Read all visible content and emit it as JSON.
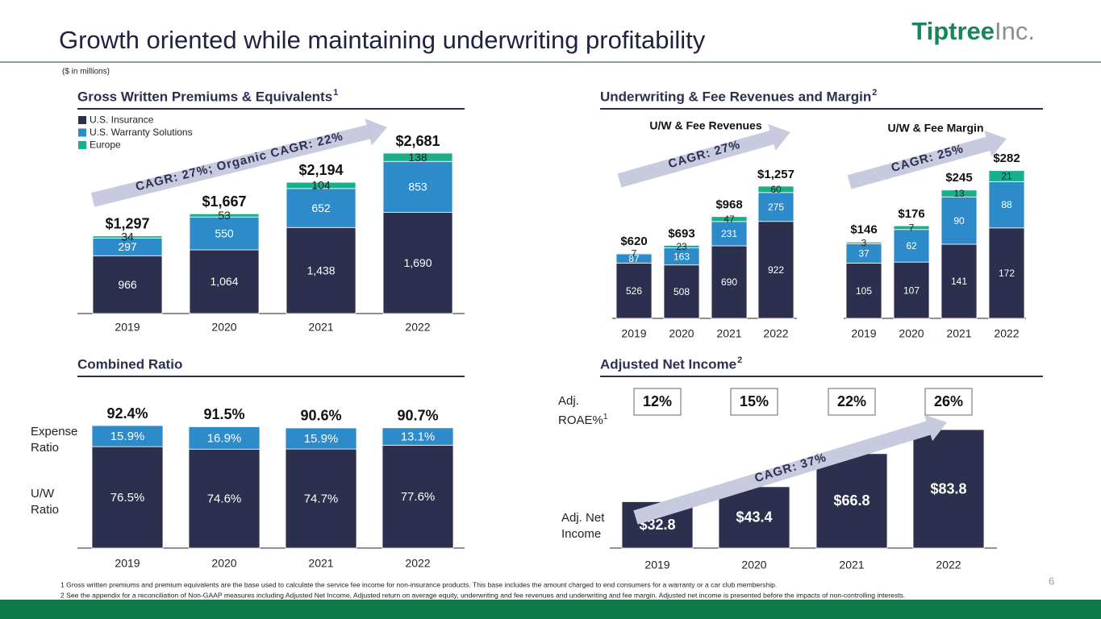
{
  "header": {
    "title": "Growth oriented while maintaining underwriting profitability",
    "logo_main": "Tiptree",
    "logo_suffix": "Inc.",
    "units_note": "($ in millions)"
  },
  "chart_data": [
    {
      "type": "bar",
      "stacked": true,
      "title": "Gross Written Premiums & Equivalents",
      "title_note": "1",
      "categories": [
        "2019",
        "2020",
        "2021",
        "2022"
      ],
      "series": [
        {
          "name": "U.S. Insurance",
          "color": "#2d2f4e",
          "values": [
            966,
            1064,
            1438,
            1690
          ],
          "value_labels": [
            "966",
            "1,064",
            "1,438",
            "1,690"
          ]
        },
        {
          "name": "U.S. Warranty Solutions",
          "color": "#2e8bc9",
          "values": [
            297,
            550,
            652,
            853
          ]
        },
        {
          "name": "Europe",
          "color": "#17b08a",
          "values": [
            34,
            53,
            104,
            138
          ]
        }
      ],
      "totals": [
        1297,
        1667,
        2194,
        2681
      ],
      "total_labels": [
        "$1,297",
        "$1,667",
        "$2,194",
        "$2,681"
      ],
      "annotation": "CAGR: 27%; Organic CAGR: 22%"
    },
    {
      "type": "bar",
      "stacked": true,
      "title": "Underwriting & Fee Revenues and Margin",
      "title_note": "2",
      "subtitle": "U/W & Fee Revenues",
      "categories": [
        "2019",
        "2020",
        "2021",
        "2022"
      ],
      "series": [
        {
          "color": "#2d2f4e",
          "values": [
            526,
            508,
            690,
            922
          ]
        },
        {
          "color": "#2e8bc9",
          "values": [
            87,
            163,
            231,
            275
          ]
        },
        {
          "color": "#17b08a",
          "values": [
            7,
            23,
            47,
            60
          ]
        }
      ],
      "totals": [
        620,
        693,
        968,
        1257
      ],
      "total_labels": [
        "$620",
        "$693",
        "$968",
        "$1,257"
      ],
      "annotation": "CAGR: 27%"
    },
    {
      "type": "bar",
      "stacked": true,
      "subtitle": "U/W & Fee Margin",
      "categories": [
        "2019",
        "2020",
        "2021",
        "2022"
      ],
      "series": [
        {
          "color": "#2d2f4e",
          "values": [
            105,
            107,
            141,
            172
          ]
        },
        {
          "color": "#2e8bc9",
          "values": [
            37,
            62,
            90,
            88
          ]
        },
        {
          "color": "#17b08a",
          "values": [
            3,
            7,
            13,
            21
          ]
        }
      ],
      "totals": [
        146,
        176,
        245,
        282
      ],
      "total_labels": [
        "$146",
        "$176",
        "$245",
        "$282"
      ],
      "annotation": "CAGR: 25%"
    },
    {
      "type": "bar",
      "stacked": true,
      "title": "Combined Ratio",
      "categories": [
        "2019",
        "2020",
        "2021",
        "2022"
      ],
      "series": [
        {
          "name": "U/W Ratio",
          "color": "#2d2f4e",
          "values": [
            76.5,
            74.6,
            74.7,
            77.6
          ],
          "value_labels": [
            "76.5%",
            "74.6%",
            "74.7%",
            "77.6%"
          ]
        },
        {
          "name": "Expense Ratio",
          "color": "#2e8bc9",
          "values": [
            15.9,
            16.9,
            15.9,
            13.1
          ],
          "value_labels": [
            "15.9%",
            "16.9%",
            "15.9%",
            "13.1%"
          ]
        }
      ],
      "totals": [
        92.4,
        91.5,
        90.6,
        90.7
      ],
      "total_labels": [
        "92.4%",
        "91.5%",
        "90.6%",
        "90.7%"
      ]
    },
    {
      "type": "bar",
      "title": "Adjusted Net Income",
      "title_note": "2",
      "categories": [
        "2019",
        "2020",
        "2021",
        "2022"
      ],
      "values": [
        32.8,
        43.4,
        66.8,
        83.8
      ],
      "value_labels": [
        "$32.8",
        "$43.4",
        "$66.8",
        "$83.8"
      ],
      "color": "#2d2f4e",
      "value_name": "Adj. Net Income",
      "roae_name": "Adj. ROAE%",
      "roae_note": "1",
      "roae": [
        12,
        15,
        22,
        26
      ],
      "roae_labels": [
        "12%",
        "15%",
        "22%",
        "26%"
      ],
      "annotation": "CAGR: 37%"
    }
  ],
  "footnotes": [
    "1 Gross written premiums and premium equivalents are the base used to calculate the service fee income for non-insurance products. This base includes the amount charged to end consumers for a warranty or a car club membership.",
    "2 See the appendix for a reconciliation of Non-GAAP measures including Adjusted Net Income, Adjusted return on average equity, underwriting and fee revenues and underwriting and fee margin. Adjusted net income is presented before the impacts of non-controlling interests."
  ],
  "page_number": "6"
}
